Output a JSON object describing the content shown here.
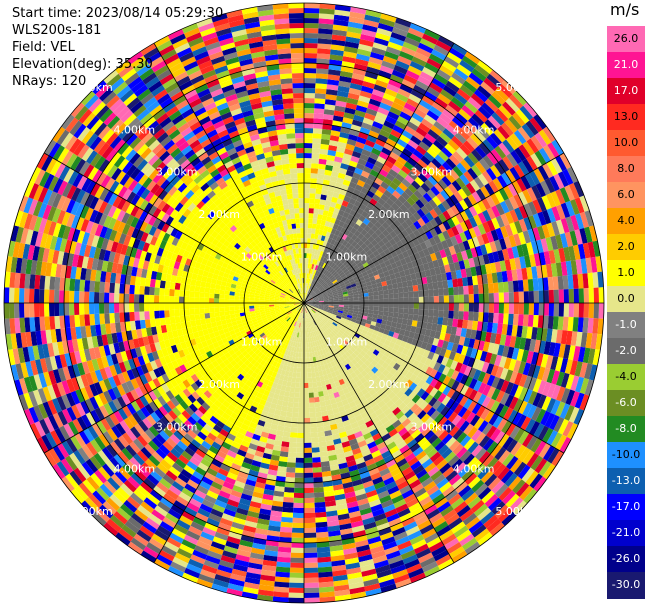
{
  "header": {
    "start_time": "Start time: 2023/08/14 05:29:30",
    "instrument": "WLS200s-181",
    "field": "Field: VEL",
    "elevation": "Elevation(deg): 35.30",
    "nrays": "NRays: 120"
  },
  "colorbar": {
    "unit": "m/s",
    "ticks": [
      "26.0",
      "21.0",
      "17.0",
      "13.0",
      "10.0",
      "8.0",
      "6.0",
      "4.0",
      "2.0",
      "1.0",
      "0.0",
      "-1.0",
      "-2.0",
      "-4.0",
      "-6.0",
      "-8.0",
      "-10.0",
      "-13.0",
      "-17.0",
      "-21.0",
      "-26.0",
      "-30.0"
    ],
    "colors": [
      "#ff69b4",
      "#ff1493",
      "#e0002a",
      "#ff2a20",
      "#ff5a30",
      "#ff7a5a",
      "#ff9460",
      "#ffa000",
      "#ffcc00",
      "#ffff00",
      "#e6e68a",
      "#808080",
      "#6b6b6b",
      "#9acd32",
      "#6b8e23",
      "#228b22",
      "#1e90ff",
      "#0d5fb0",
      "#0000ff",
      "#0000cd",
      "#00008b",
      "#191970"
    ]
  },
  "chart_data": {
    "type": "heatmap",
    "projection": "polar",
    "field": "VEL",
    "units": "m/s",
    "n_rays": 120,
    "elevation_deg": 35.3,
    "range_rings_km": [
      1.0,
      2.0,
      3.0,
      4.0,
      5.0
    ],
    "range_ring_labels": [
      "1.00km",
      "2.00km",
      "3.00km",
      "4.00km",
      "5.00km"
    ],
    "azimuth_spoke_step_deg": 30,
    "max_range_km": 5.0,
    "inner_valid_range_km": 2.1,
    "sectors": [
      {
        "name": "west-northwest",
        "azimuth_deg": [
          200,
          340
        ],
        "dominant_velocity_ms": [
          1.0,
          2.0
        ]
      },
      {
        "name": "northeast-east",
        "azimuth_deg": [
          20,
          110
        ],
        "dominant_velocity_ms": [
          -2.0,
          -1.0
        ]
      },
      {
        "name": "south-southeast",
        "azimuth_deg": [
          110,
          200
        ],
        "dominant_velocity_ms": [
          0.0,
          0.0
        ]
      }
    ],
    "far_range_note_values": "mixed noise from -30.0 to 26.0"
  }
}
